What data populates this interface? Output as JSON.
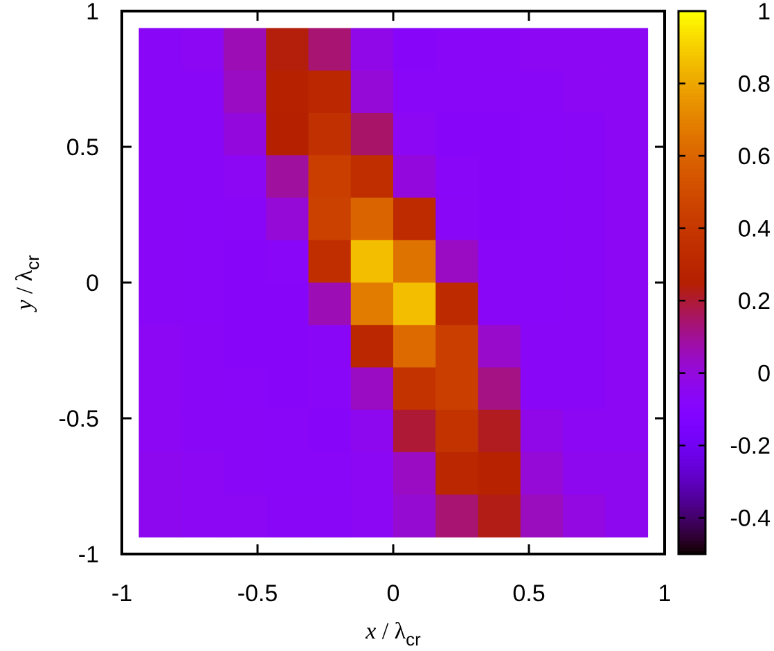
{
  "chart_data": {
    "type": "heatmap",
    "title": "",
    "xlabel": {
      "var": "x",
      "sep": " / λ",
      "sub": "cr"
    },
    "ylabel": {
      "var": "y",
      "sep": " / λ",
      "sub": "cr"
    },
    "xlim": [
      -1,
      1
    ],
    "ylim": [
      -1,
      1
    ],
    "x_ticks": [
      "-1",
      "-0.5",
      "0",
      "0.5",
      "1"
    ],
    "y_ticks": [
      "-1",
      "-0.5",
      "0",
      "0.5",
      "1"
    ],
    "colorbar": {
      "range": [
        -0.5,
        1
      ],
      "ticks": [
        "-0.4",
        "-0.2",
        "0",
        "0.2",
        "0.4",
        "0.6",
        "0.8",
        "1"
      ],
      "palette": "gnuplot-hot"
    },
    "grid": false,
    "cell_extent": [
      -0.9375,
      0.9375
    ],
    "rows_top_to_bottom": [
      [
        -0.06,
        -0.05,
        0.06,
        0.24,
        0.14,
        -0.02,
        -0.08,
        -0.07,
        -0.06,
        -0.05,
        -0.05,
        -0.05
      ],
      [
        -0.06,
        -0.06,
        0.04,
        0.26,
        0.3,
        0.01,
        -0.07,
        -0.07,
        -0.07,
        -0.06,
        -0.05,
        -0.05
      ],
      [
        -0.06,
        -0.06,
        0.0,
        0.25,
        0.36,
        0.15,
        -0.05,
        -0.08,
        -0.08,
        -0.07,
        -0.06,
        -0.05
      ],
      [
        -0.06,
        -0.06,
        -0.05,
        0.09,
        0.44,
        0.35,
        0.0,
        -0.07,
        -0.08,
        -0.07,
        -0.06,
        -0.05
      ],
      [
        -0.06,
        -0.07,
        -0.06,
        0.01,
        0.45,
        0.6,
        0.33,
        -0.06,
        -0.08,
        -0.07,
        -0.06,
        -0.05
      ],
      [
        -0.06,
        -0.07,
        -0.08,
        -0.07,
        0.35,
        0.86,
        0.65,
        0.04,
        -0.07,
        -0.07,
        -0.06,
        -0.05
      ],
      [
        -0.06,
        -0.07,
        -0.08,
        -0.08,
        0.06,
        0.68,
        0.86,
        0.32,
        -0.06,
        -0.07,
        -0.06,
        -0.05
      ],
      [
        -0.05,
        -0.06,
        -0.08,
        -0.08,
        -0.06,
        0.3,
        0.62,
        0.44,
        0.03,
        -0.06,
        -0.06,
        -0.05
      ],
      [
        -0.05,
        -0.06,
        -0.07,
        -0.08,
        -0.07,
        0.04,
        0.38,
        0.44,
        0.12,
        -0.06,
        -0.06,
        -0.05
      ],
      [
        -0.05,
        -0.06,
        -0.06,
        -0.07,
        -0.08,
        -0.04,
        0.2,
        0.38,
        0.22,
        -0.02,
        -0.05,
        -0.05
      ],
      [
        -0.04,
        -0.05,
        -0.06,
        -0.07,
        -0.07,
        -0.05,
        0.04,
        0.3,
        0.27,
        0.01,
        -0.04,
        -0.04
      ],
      [
        -0.04,
        -0.05,
        -0.05,
        -0.06,
        -0.06,
        -0.05,
        0.02,
        0.14,
        0.23,
        0.05,
        -0.01,
        -0.04
      ]
    ]
  }
}
